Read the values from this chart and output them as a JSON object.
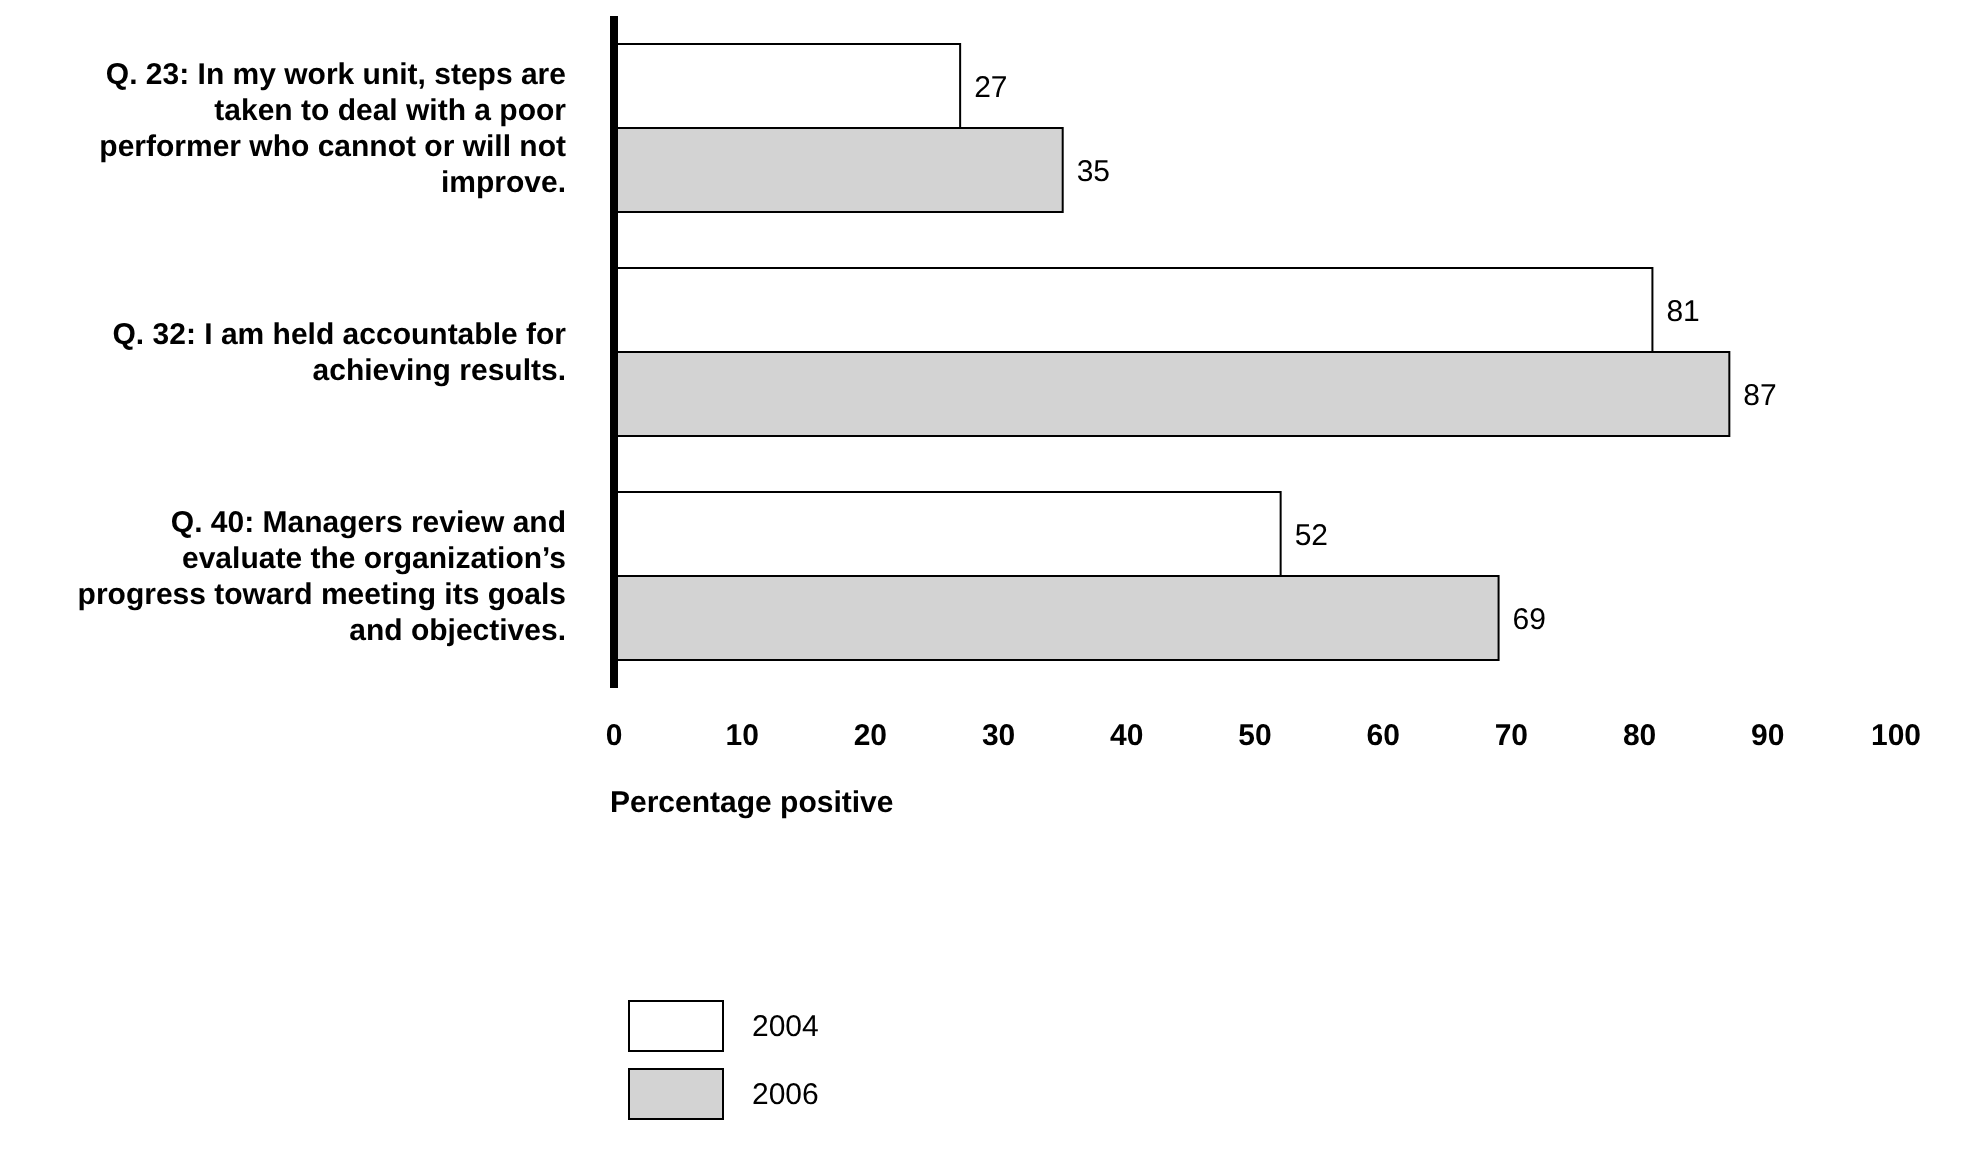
{
  "chart_data": {
    "type": "bar",
    "orientation": "horizontal",
    "xlabel": "Percentage positive",
    "categories": [
      "Q. 23: In my work unit, steps are taken to deal with a poor performer who cannot or will not improve.",
      "Q. 32: I am held accountable for achieving results.",
      "Q. 40: Managers review and evaluate the organization’s progress toward meeting its goals and objectives."
    ],
    "series": [
      {
        "name": "2004",
        "color": "#ffffff",
        "values": [
          27,
          81,
          52
        ]
      },
      {
        "name": "2006",
        "color": "#d3d3d3",
        "values": [
          35,
          87,
          69
        ]
      }
    ],
    "xlim": [
      0,
      100
    ],
    "xticks": [
      0,
      10,
      20,
      30,
      40,
      50,
      60,
      70,
      80,
      90,
      100
    ],
    "data_labels": true,
    "grid": false,
    "legend": "bottom left"
  }
}
